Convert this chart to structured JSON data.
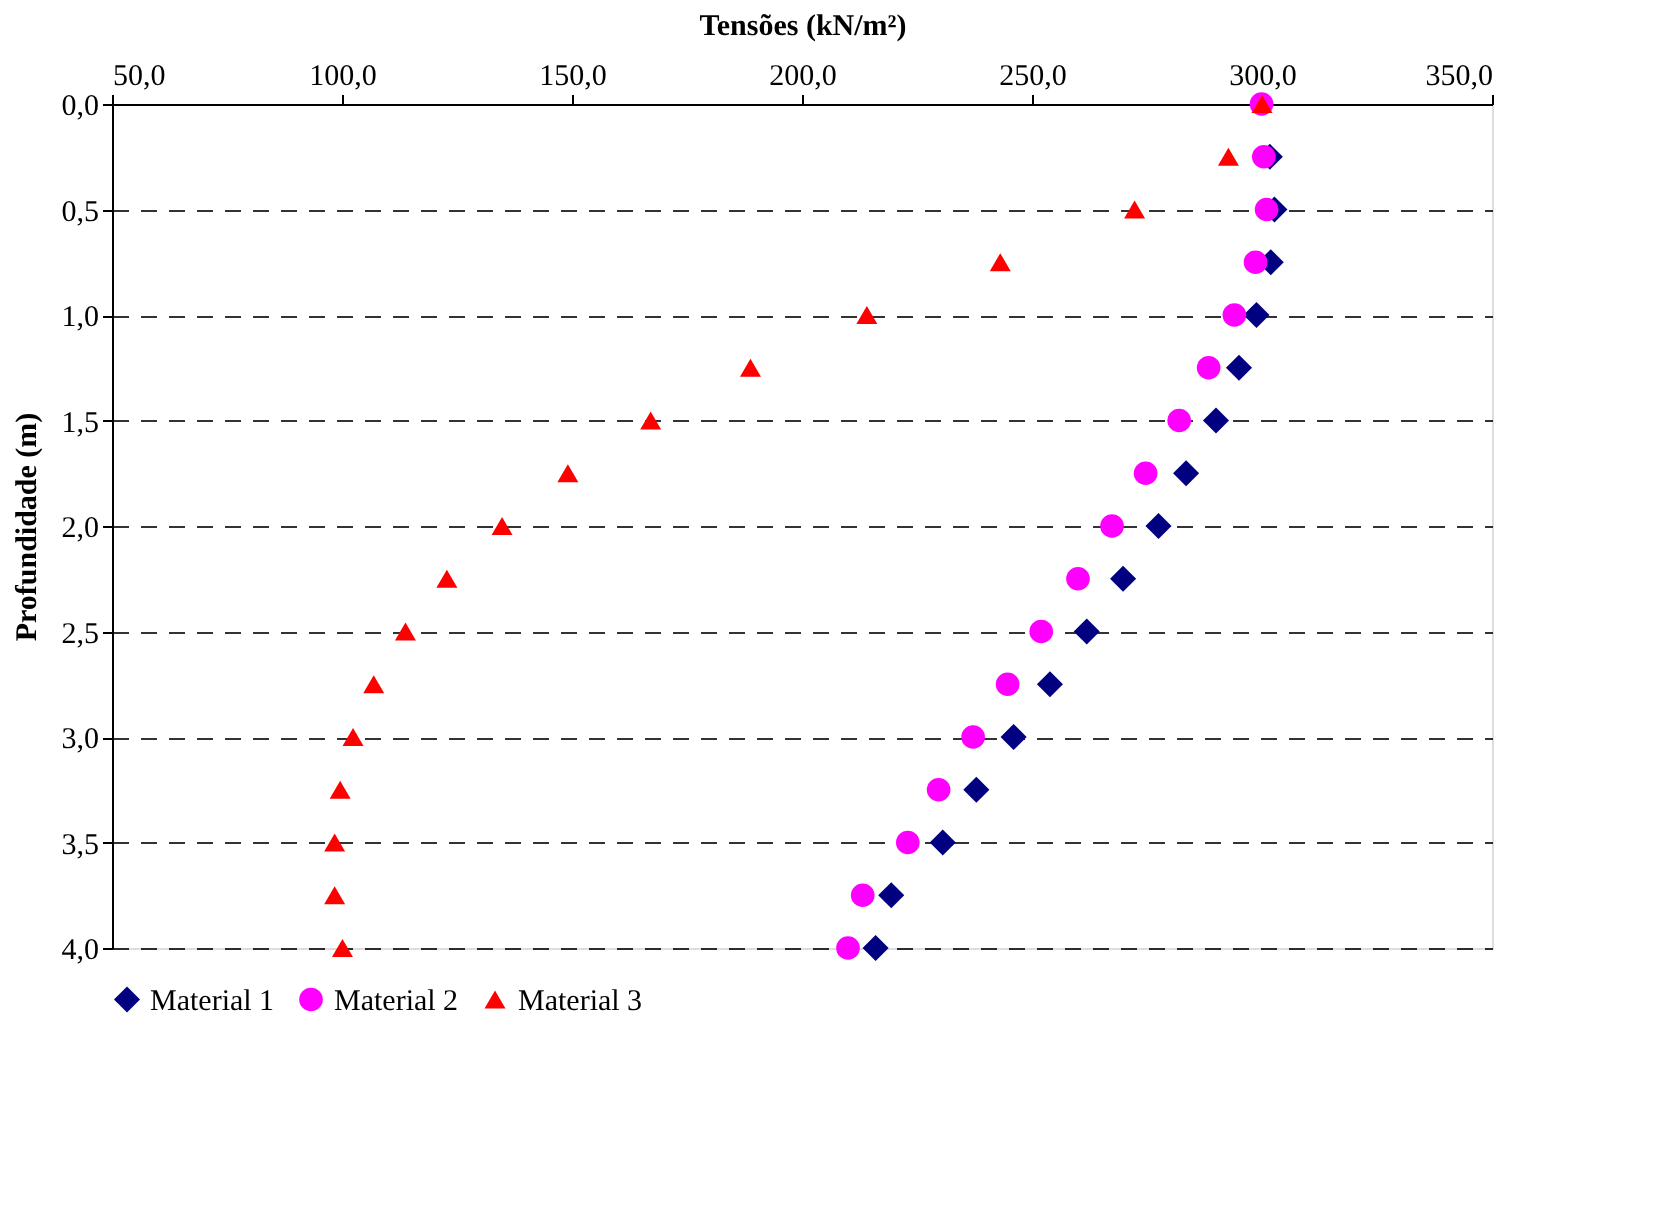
{
  "chart_data": {
    "type": "scatter",
    "xlabel": "Tensões (kN/m²)",
    "ylabel": "Profundidade (m)",
    "xlim": [
      50,
      350
    ],
    "xticks": [
      {
        "value": 50,
        "label": "50,0"
      },
      {
        "value": 100,
        "label": "100,0"
      },
      {
        "value": 150,
        "label": "150,0"
      },
      {
        "value": 200,
        "label": "200,0"
      },
      {
        "value": 250,
        "label": "250,0"
      },
      {
        "value": 300,
        "label": "300,0"
      },
      {
        "value": 350,
        "label": "350,0"
      }
    ],
    "ylim": [
      4,
      0
    ],
    "yticks": [
      {
        "value": 0,
        "label": "0,0"
      },
      {
        "value": 0.5,
        "label": "0,5"
      },
      {
        "value": 1,
        "label": "1,0"
      },
      {
        "value": 1.5,
        "label": "1,5"
      },
      {
        "value": 2,
        "label": "2,0"
      },
      {
        "value": 2.5,
        "label": "2,5"
      },
      {
        "value": 3,
        "label": "3,0"
      },
      {
        "value": 3.5,
        "label": "3,5"
      },
      {
        "value": 4,
        "label": "4,0"
      }
    ],
    "grid": "y",
    "legend": "bottom",
    "series": [
      {
        "name": "Material 1",
        "color": "#000080",
        "marker": "diamond",
        "x": [
          null,
          301.7,
          302.7,
          301.9,
          298.8,
          295.0,
          290.0,
          283.5,
          277.5,
          269.8,
          261.9,
          253.9,
          246.0,
          237.9,
          230.6,
          219.4,
          216.0
        ],
        "values": [
          null,
          0.25,
          0.5,
          0.75,
          1,
          1.25,
          1.5,
          1.75,
          2,
          2.25,
          2.5,
          2.75,
          3,
          3.25,
          3.5,
          3.75,
          4
        ]
      },
      {
        "name": "Material 2",
        "color": "#ff00ff",
        "marker": "circle",
        "x": [
          299.9,
          300.4,
          301.0,
          298.6,
          294.0,
          288.4,
          282.0,
          274.7,
          267.4,
          260.0,
          252.0,
          244.7,
          237.2,
          229.7,
          223.0,
          213.2,
          210.0
        ],
        "values": [
          0,
          0.25,
          0.5,
          0.75,
          1,
          1.25,
          1.5,
          1.75,
          2,
          2.25,
          2.5,
          2.75,
          3,
          3.25,
          3.5,
          3.75,
          4
        ]
      },
      {
        "name": "Material 3",
        "color": "#ff0000",
        "marker": "triangle",
        "x": [
          300.0,
          292.7,
          272.3,
          243.1,
          214.1,
          188.8,
          167.1,
          149.1,
          134.8,
          122.8,
          113.8,
          106.9,
          102.4,
          99.6,
          98.4,
          98.4,
          100.1
        ],
        "values": [
          0,
          0.25,
          0.5,
          0.75,
          1,
          1.25,
          1.5,
          1.75,
          2,
          2.25,
          2.5,
          2.75,
          3,
          3.25,
          3.5,
          3.75,
          4
        ]
      }
    ]
  }
}
